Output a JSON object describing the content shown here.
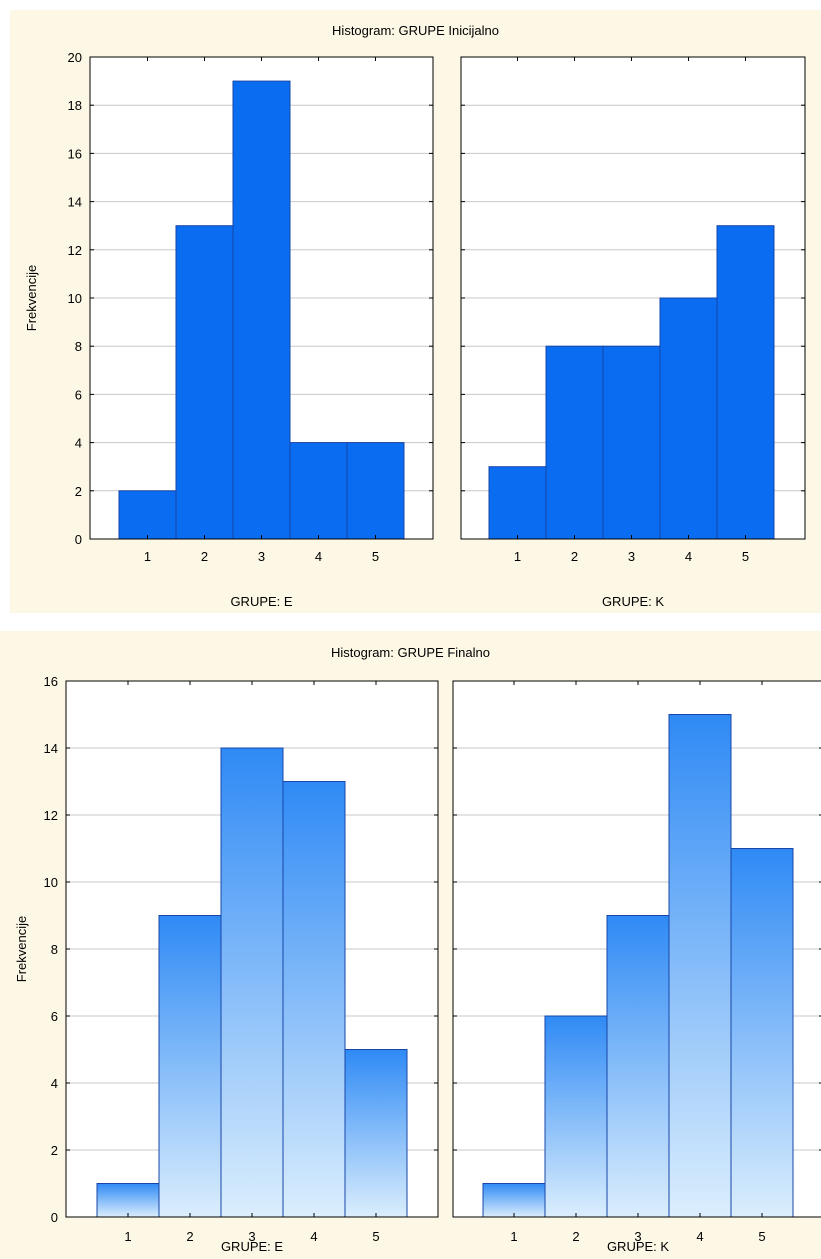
{
  "colors": {
    "background": "#fdf8e6",
    "plot_area": "#ffffff",
    "bar_solid": "#0a6cf0",
    "bar_gradient_top": "#2f8af5",
    "bar_gradient_bottom": "#dbeefd",
    "bar_edge": "#1746a8",
    "grid": "#c8c8c8"
  },
  "chart_data": [
    {
      "type": "bar",
      "title": "Histogram: GRUPE Inicijalno",
      "ylabel": "Frekvencije",
      "ylim": [
        0,
        20
      ],
      "yticks": [
        "0",
        "2",
        "4",
        "6",
        "8",
        "10",
        "12",
        "14",
        "16",
        "18",
        "20"
      ],
      "grid": true,
      "fill": "solid",
      "categories": [
        "1",
        "2",
        "3",
        "4",
        "5"
      ],
      "series": [
        {
          "xlabel": "GRUPE: E",
          "values": [
            2,
            13,
            19,
            4,
            4
          ]
        },
        {
          "xlabel": "GRUPE: K",
          "values": [
            3,
            8,
            8,
            10,
            13
          ]
        }
      ]
    },
    {
      "type": "bar",
      "title": "Histogram: GRUPE Finalno",
      "ylabel": "Frekvencije",
      "ylim": [
        0,
        16
      ],
      "yticks": [
        "0",
        "2",
        "4",
        "6",
        "8",
        "10",
        "12",
        "14",
        "16"
      ],
      "grid": true,
      "fill": "gradient",
      "categories": [
        "1",
        "2",
        "3",
        "4",
        "5"
      ],
      "series": [
        {
          "xlabel": "GRUPE: E",
          "values": [
            1,
            9,
            14,
            13,
            5
          ]
        },
        {
          "xlabel": "GRUPE: K",
          "values": [
            1,
            6,
            9,
            15,
            11
          ]
        }
      ]
    }
  ]
}
